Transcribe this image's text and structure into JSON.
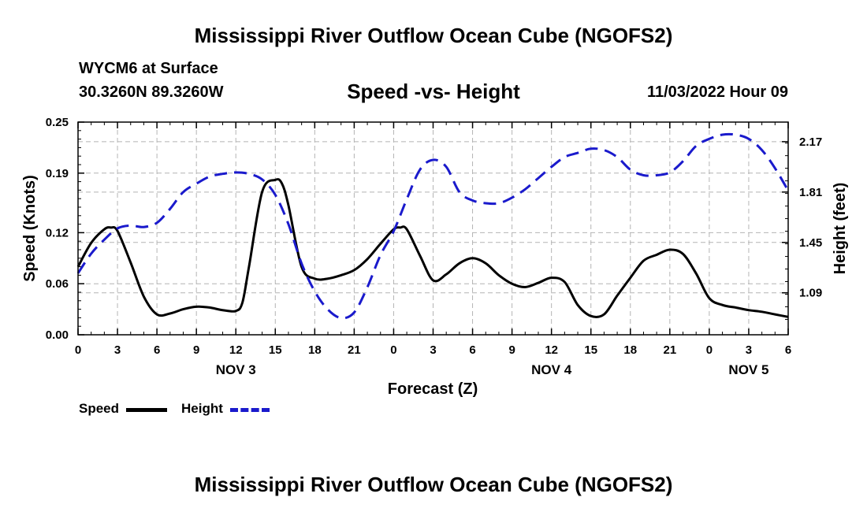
{
  "header": {
    "title": "Mississippi River Outflow Ocean Cube (NGOFS2)",
    "station": "WYCM6 at Surface",
    "coordinates": "30.3260N  89.3260W",
    "subtitle": "Speed -vs- Height",
    "timestamp": "11/03/2022 Hour 09"
  },
  "footer": {
    "title": "Mississippi River Outflow Ocean Cube (NGOFS2)"
  },
  "legend": {
    "speed_label": "Speed",
    "height_label": "Height"
  },
  "colors": {
    "speed": "#000000",
    "height": "#1a1acc",
    "grid": "#b4b4b4"
  },
  "chart_data": {
    "type": "line",
    "title": "Speed -vs- Height",
    "xlabel": "Forecast (Z)",
    "ylabel": "Speed (Knots)",
    "y2label": "Height (feet)",
    "x_range": [
      0,
      54
    ],
    "x_ticks": [
      0,
      3,
      6,
      9,
      12,
      15,
      18,
      21,
      24,
      27,
      30,
      33,
      36,
      39,
      42,
      45,
      48,
      51,
      54
    ],
    "x_tick_labels": [
      "0",
      "3",
      "6",
      "9",
      "12",
      "15",
      "18",
      "21",
      "0",
      "3",
      "6",
      "9",
      "12",
      "15",
      "18",
      "21",
      "0",
      "3",
      "6"
    ],
    "date_labels": [
      {
        "hour": 12,
        "label": "NOV 3"
      },
      {
        "hour": 36,
        "label": "NOV 4"
      },
      {
        "hour": 51,
        "label": "NOV 5"
      }
    ],
    "ylim": [
      0,
      0.25
    ],
    "y_ticks": [
      0,
      0.06,
      0.12,
      0.19,
      0.25
    ],
    "y_tick_labels": [
      "0.00",
      "0.06",
      "0.12",
      "0.19",
      "0.25"
    ],
    "y2lim": [
      0.79,
      2.31
    ],
    "y2_ticks": [
      1.09,
      1.45,
      1.81,
      2.17
    ],
    "y2_tick_labels": [
      "1.09",
      "1.45",
      "1.81",
      "2.17"
    ],
    "grid": true,
    "series": [
      {
        "name": "Speed",
        "axis": "left",
        "style": "solid",
        "x": [
          0,
          1,
          2,
          2.5,
          3,
          4,
          5,
          6,
          7,
          8,
          9,
          10,
          11,
          12,
          12.5,
          13,
          14,
          15,
          15.5,
          16,
          17,
          18,
          19,
          20,
          21,
          22,
          23,
          24,
          24.5,
          25,
          26,
          27,
          28,
          29,
          30,
          31,
          32,
          33,
          34,
          35,
          36,
          37,
          38,
          39,
          40,
          41,
          42,
          43,
          44,
          45,
          46,
          47,
          48,
          49,
          50,
          51,
          52,
          53,
          54
        ],
        "y": [
          0.08,
          0.108,
          0.124,
          0.126,
          0.122,
          0.085,
          0.045,
          0.024,
          0.025,
          0.03,
          0.033,
          0.032,
          0.029,
          0.028,
          0.038,
          0.08,
          0.168,
          0.182,
          0.178,
          0.152,
          0.08,
          0.066,
          0.066,
          0.07,
          0.076,
          0.089,
          0.107,
          0.124,
          0.126,
          0.124,
          0.093,
          0.064,
          0.071,
          0.084,
          0.09,
          0.084,
          0.07,
          0.06,
          0.056,
          0.061,
          0.067,
          0.062,
          0.035,
          0.022,
          0.024,
          0.046,
          0.067,
          0.087,
          0.094,
          0.1,
          0.095,
          0.072,
          0.043,
          0.035,
          0.032,
          0.029,
          0.027,
          0.024,
          0.021
        ]
      },
      {
        "name": "Height",
        "axis": "right",
        "style": "dashed",
        "x": [
          0,
          1,
          2,
          3,
          4,
          5,
          6,
          7,
          8,
          9,
          10,
          11,
          12,
          13,
          14,
          15,
          16,
          17,
          18,
          19,
          20,
          21,
          22,
          23,
          24,
          25,
          26,
          27,
          28,
          29,
          30,
          31,
          32,
          33,
          34,
          35,
          36,
          37,
          38,
          39,
          40,
          41,
          42,
          43,
          44,
          45,
          46,
          47,
          48,
          49,
          50,
          51,
          52,
          53,
          54
        ],
        "y": [
          1.23,
          1.37,
          1.47,
          1.55,
          1.57,
          1.56,
          1.59,
          1.69,
          1.81,
          1.87,
          1.92,
          1.94,
          1.95,
          1.94,
          1.9,
          1.79,
          1.58,
          1.3,
          1.1,
          0.97,
          0.91,
          0.95,
          1.13,
          1.36,
          1.53,
          1.76,
          1.97,
          2.04,
          1.99,
          1.81,
          1.75,
          1.73,
          1.73,
          1.77,
          1.83,
          1.91,
          1.99,
          2.06,
          2.09,
          2.12,
          2.11,
          2.06,
          1.97,
          1.93,
          1.93,
          1.95,
          2.03,
          2.14,
          2.19,
          2.22,
          2.22,
          2.19,
          2.11,
          1.98,
          1.82
        ]
      }
    ]
  }
}
